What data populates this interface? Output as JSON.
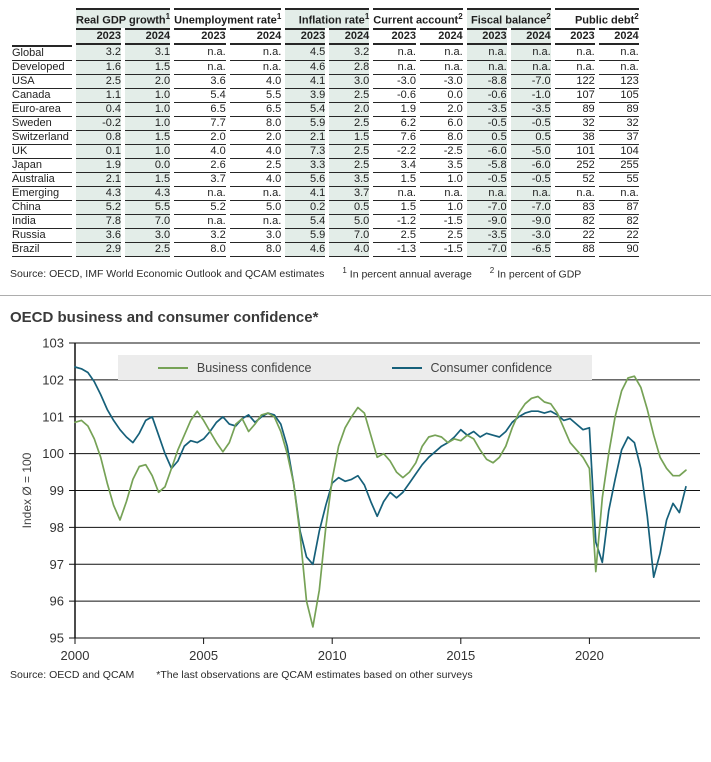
{
  "table": {
    "col_groups": [
      {
        "label": "Real GDP growth",
        "footnote": "1",
        "shaded": true
      },
      {
        "label": "Unemployment rate",
        "footnote": "1",
        "shaded": false
      },
      {
        "label": "Inflation rate",
        "footnote": "1",
        "shaded": true
      },
      {
        "label": "Current account",
        "footnote": "2",
        "shaded": false
      },
      {
        "label": "Fiscal balance",
        "footnote": "2",
        "shaded": true
      },
      {
        "label": "Public debt",
        "footnote": "2",
        "shaded": false
      }
    ],
    "year_headers": [
      "2023",
      "2024"
    ],
    "rows": [
      {
        "label": "Global",
        "values": [
          "3.2",
          "3.1",
          "n.a.",
          "n.a.",
          "4.5",
          "3.2",
          "n.a.",
          "n.a.",
          "n.a.",
          "n.a.",
          "n.a.",
          "n.a."
        ]
      },
      {
        "label": "Developed",
        "values": [
          "1.6",
          "1.5",
          "n.a.",
          "n.a.",
          "4.6",
          "2.8",
          "n.a.",
          "n.a.",
          "n.a.",
          "n.a.",
          "n.a.",
          "n.a."
        ]
      },
      {
        "label": "USA",
        "values": [
          "2.5",
          "2.0",
          "3.6",
          "4.0",
          "4.1",
          "3.0",
          "-3.0",
          "-3.0",
          "-8.8",
          "-7.0",
          "122",
          "123"
        ]
      },
      {
        "label": "Canada",
        "values": [
          "1.1",
          "1.0",
          "5.4",
          "5.5",
          "3.9",
          "2.5",
          "-0.6",
          "0.0",
          "-0.6",
          "-1.0",
          "107",
          "105"
        ]
      },
      {
        "label": "Euro-area",
        "values": [
          "0.4",
          "1.0",
          "6.5",
          "6.5",
          "5.4",
          "2.0",
          "1.9",
          "2.0",
          "-3.5",
          "-3.5",
          "89",
          "89"
        ]
      },
      {
        "label": "Sweden",
        "values": [
          "-0.2",
          "1.0",
          "7.7",
          "8.0",
          "5.9",
          "2.5",
          "6.2",
          "6.0",
          "-0.5",
          "-0.5",
          "32",
          "32"
        ]
      },
      {
        "label": "Switzerland",
        "values": [
          "0.8",
          "1.5",
          "2.0",
          "2.0",
          "2.1",
          "1.5",
          "7.6",
          "8.0",
          "0.5",
          "0.5",
          "38",
          "37"
        ]
      },
      {
        "label": "UK",
        "values": [
          "0.1",
          "1.0",
          "4.0",
          "4.0",
          "7.3",
          "2.5",
          "-2.2",
          "-2.5",
          "-6.0",
          "-5.0",
          "101",
          "104"
        ]
      },
      {
        "label": "Japan",
        "values": [
          "1.9",
          "0.0",
          "2.6",
          "2.5",
          "3.3",
          "2.5",
          "3.4",
          "3.5",
          "-5.8",
          "-6.0",
          "252",
          "255"
        ]
      },
      {
        "label": "Australia",
        "values": [
          "2.1",
          "1.5",
          "3.7",
          "4.0",
          "5.6",
          "3.5",
          "1.5",
          "1.0",
          "-0.5",
          "-0.5",
          "52",
          "55"
        ]
      },
      {
        "label": "Emerging",
        "values": [
          "4.3",
          "4.3",
          "n.a.",
          "n.a.",
          "4.1",
          "3.7",
          "n.a.",
          "n.a.",
          "n.a.",
          "n.a.",
          "n.a.",
          "n.a."
        ]
      },
      {
        "label": "China",
        "values": [
          "5.2",
          "5.5",
          "5.2",
          "5.0",
          "0.2",
          "0.5",
          "1.5",
          "1.0",
          "-7.0",
          "-7.0",
          "83",
          "87"
        ]
      },
      {
        "label": "India",
        "values": [
          "7.8",
          "7.0",
          "n.a.",
          "n.a.",
          "5.4",
          "5.0",
          "-1.2",
          "-1.5",
          "-9.0",
          "-9.0",
          "82",
          "82"
        ]
      },
      {
        "label": "Russia",
        "values": [
          "3.6",
          "3.0",
          "3.2",
          "3.0",
          "5.9",
          "7.0",
          "2.5",
          "2.5",
          "-3.5",
          "-3.0",
          "22",
          "22"
        ]
      },
      {
        "label": "Brazil",
        "values": [
          "2.9",
          "2.5",
          "8.0",
          "8.0",
          "4.6",
          "4.0",
          "-1.3",
          "-1.5",
          "-7.0",
          "-6.5",
          "88",
          "90"
        ]
      }
    ],
    "source": "Source: OECD, IMF World Economic Outlook and QCAM estimates",
    "footnotes": [
      {
        "sup": "1",
        "text": "In percent annual average"
      },
      {
        "sup": "2",
        "text": "In percent of GDP"
      }
    ]
  },
  "chart": {
    "title": "OECD business and consumer confidence*",
    "source": "Source: OECD and QCAM",
    "footnote": "*The last observations are QCAM estimates based on other surveys"
  },
  "chart_data": {
    "type": "line",
    "title": "OECD business and consumer confidence*",
    "xlabel": "",
    "ylabel": "Index Ø = 100",
    "ylim": [
      95,
      103
    ],
    "xlim": [
      2000,
      2024.3
    ],
    "yticks": [
      95,
      96,
      97,
      98,
      99,
      100,
      101,
      102,
      103
    ],
    "xticks": [
      2000,
      2005,
      2010,
      2015,
      2020
    ],
    "grid": true,
    "legend_position": "top-center",
    "x_start": 2000,
    "x_step": 0.25,
    "series": [
      {
        "name": "Business confidence",
        "color": "#76a256",
        "values": [
          100.85,
          100.9,
          100.75,
          100.4,
          99.9,
          99.2,
          98.6,
          98.2,
          98.7,
          99.3,
          99.65,
          99.7,
          99.4,
          98.95,
          99.1,
          99.6,
          100.1,
          100.5,
          100.9,
          101.15,
          100.9,
          100.6,
          100.3,
          100.05,
          100.3,
          100.8,
          100.95,
          100.6,
          100.8,
          101.05,
          101.1,
          101.0,
          100.6,
          100.0,
          99.2,
          97.8,
          96.0,
          95.3,
          96.3,
          98.0,
          99.3,
          100.2,
          100.7,
          101.0,
          101.25,
          101.1,
          100.5,
          99.9,
          100.0,
          99.8,
          99.5,
          99.35,
          99.5,
          99.75,
          100.2,
          100.45,
          100.5,
          100.45,
          100.3,
          100.4,
          100.35,
          100.5,
          100.4,
          100.1,
          99.85,
          99.75,
          99.9,
          100.2,
          100.7,
          101.1,
          101.35,
          101.5,
          101.55,
          101.4,
          101.35,
          101.1,
          100.7,
          100.3,
          100.1,
          99.9,
          99.6,
          96.8,
          98.8,
          100.0,
          101.0,
          101.7,
          102.05,
          102.1,
          101.8,
          101.2,
          100.5,
          99.9,
          99.6,
          99.4,
          99.4,
          99.55
        ]
      },
      {
        "name": "Consumer confidence",
        "color": "#16607a",
        "values": [
          102.35,
          102.3,
          102.2,
          101.95,
          101.6,
          101.2,
          100.9,
          100.65,
          100.45,
          100.3,
          100.55,
          100.9,
          101.0,
          100.5,
          100.0,
          99.6,
          99.8,
          100.2,
          100.35,
          100.3,
          100.4,
          100.6,
          100.85,
          101.0,
          100.8,
          100.75,
          100.95,
          101.05,
          100.85,
          101.0,
          101.1,
          101.05,
          100.8,
          100.2,
          99.2,
          97.9,
          97.2,
          97.0,
          97.9,
          98.6,
          99.2,
          99.35,
          99.25,
          99.3,
          99.4,
          99.15,
          98.7,
          98.3,
          98.7,
          98.95,
          98.8,
          98.95,
          99.2,
          99.45,
          99.7,
          99.9,
          100.05,
          100.2,
          100.3,
          100.45,
          100.65,
          100.5,
          100.6,
          100.45,
          100.55,
          100.5,
          100.45,
          100.6,
          100.85,
          101.0,
          101.1,
          101.15,
          101.15,
          101.1,
          101.15,
          101.05,
          100.9,
          100.95,
          100.8,
          100.65,
          100.7,
          97.6,
          97.05,
          98.45,
          99.3,
          100.1,
          100.45,
          100.3,
          99.6,
          98.3,
          96.65,
          97.3,
          98.2,
          98.65,
          98.4,
          99.1
        ]
      }
    ]
  }
}
